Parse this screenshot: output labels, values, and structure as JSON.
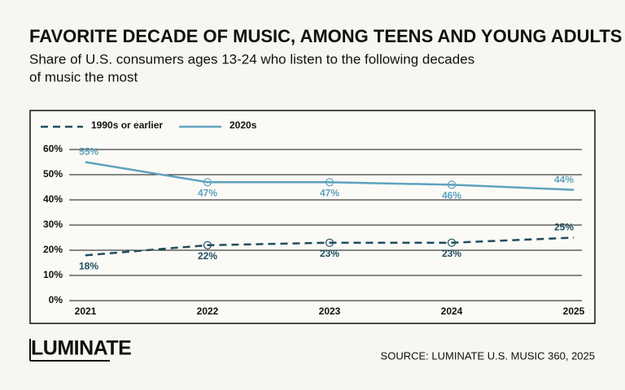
{
  "chart_data": {
    "type": "line",
    "title": "FAVORITE DECADE OF MUSIC, AMONG TEENS AND YOUNG ADULTS",
    "subtitle": [
      "Share of U.S. consumers ages 13-24 who listen to the following decades",
      "of music the most"
    ],
    "categories": [
      "2021",
      "2022",
      "2023",
      "2024",
      "2025"
    ],
    "series": [
      {
        "name": "1990s or earlier",
        "color": "#1f4e5f",
        "dash": true,
        "values": [
          18,
          22,
          23,
          23,
          25
        ],
        "value_labels": [
          "18%",
          "22%",
          "23%",
          "23%",
          "25%"
        ]
      },
      {
        "name": "2020s",
        "color": "#5ea2bf",
        "dash": false,
        "values": [
          55,
          47,
          47,
          46,
          44
        ],
        "value_labels": [
          "55%",
          "47%",
          "47%",
          "46%",
          "44%"
        ]
      }
    ],
    "ylim": [
      0,
      60
    ],
    "yticks": [
      {
        "value": 0,
        "label": "0%"
      },
      {
        "value": 10,
        "label": "10%"
      },
      {
        "value": 20,
        "label": "20%"
      },
      {
        "value": 30,
        "label": "30%"
      },
      {
        "value": 40,
        "label": "40%"
      },
      {
        "value": 50,
        "label": "50%"
      },
      {
        "value": 60,
        "label": "60%"
      }
    ],
    "grid": true,
    "legend": "top-left",
    "logo": "LUMINATE",
    "source": "SOURCE: LUMINATE U.S. MUSIC 360, 2025"
  }
}
